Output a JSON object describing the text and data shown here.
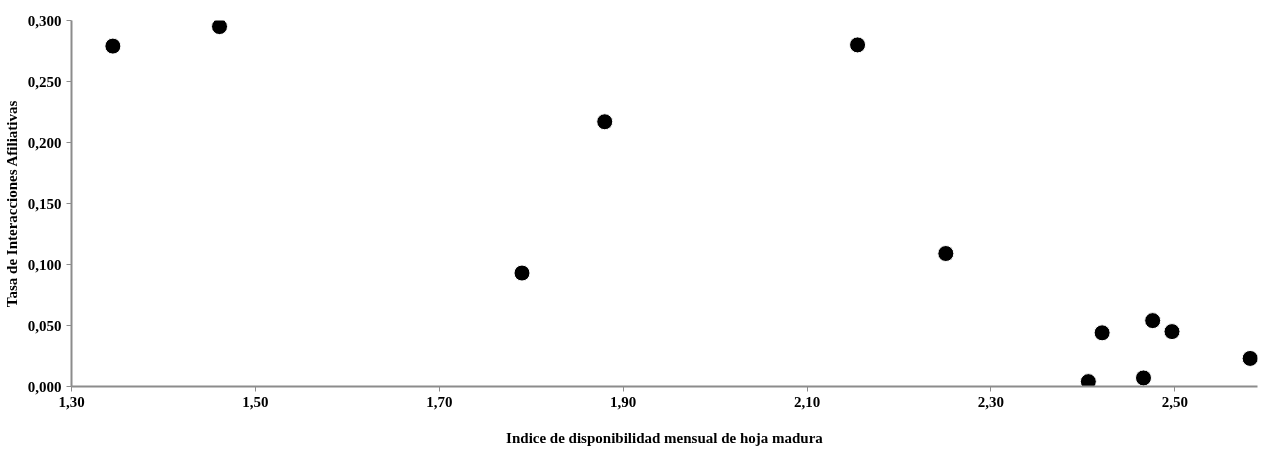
{
  "chart_data": {
    "type": "scatter",
    "xlabel": "Indice de disponibilidad mensual de hoja madura",
    "ylabel": "Tasa de Interacciones Afiliativas",
    "x": [
      1.345,
      1.461,
      1.79,
      1.88,
      2.155,
      2.251,
      2.406,
      2.421,
      2.466,
      2.476,
      2.497,
      2.582
    ],
    "values": [
      0.279,
      0.295,
      0.093,
      0.217,
      0.28,
      0.109,
      0.004,
      0.044,
      0.007,
      0.054,
      0.045,
      0.023
    ],
    "color": "#000000",
    "marker": "circle",
    "grid": false,
    "xlim": [
      1.3,
      2.59
    ],
    "ylim": [
      0,
      0.3
    ],
    "xticks": [
      {
        "value": 1.3,
        "label": "1,30"
      },
      {
        "value": 1.5,
        "label": "1,50"
      },
      {
        "value": 1.7,
        "label": "1,70"
      },
      {
        "value": 1.9,
        "label": "1,90"
      },
      {
        "value": 2.1,
        "label": "2,10"
      },
      {
        "value": 2.3,
        "label": "2,30"
      },
      {
        "value": 2.5,
        "label": "2,50"
      }
    ],
    "yticks": [
      {
        "value": 0,
        "label": "0,000"
      },
      {
        "value": 0.05,
        "label": "0,050"
      },
      {
        "value": 0.1,
        "label": "0,100"
      },
      {
        "value": 0.15,
        "label": "0,150"
      },
      {
        "value": 0.2,
        "label": "0,200"
      },
      {
        "value": 0.25,
        "label": "0,250"
      },
      {
        "value": 0.3,
        "label": "0,300"
      }
    ]
  }
}
